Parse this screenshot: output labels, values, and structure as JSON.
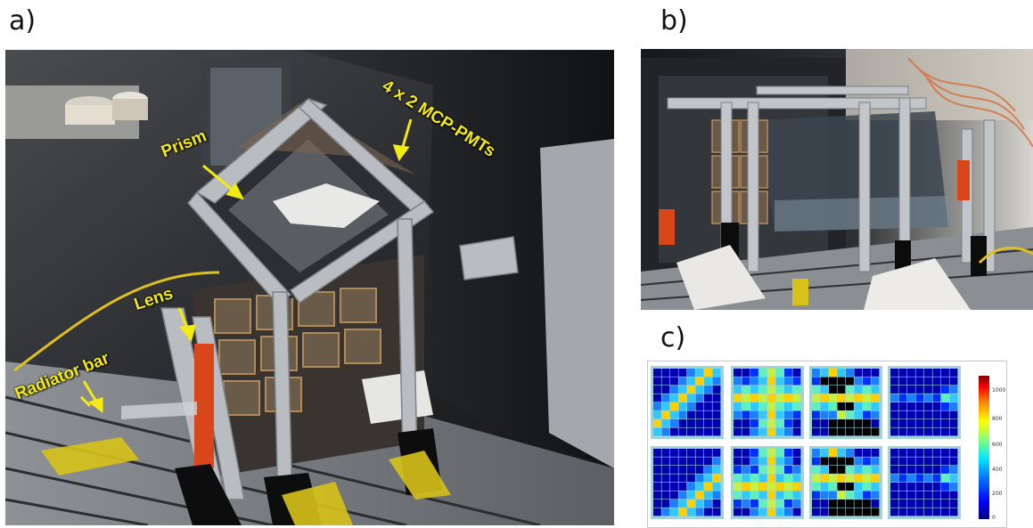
{
  "panels": {
    "a": {
      "label": "a)"
    },
    "b": {
      "label": "b)"
    },
    "c": {
      "label": "c)"
    }
  },
  "annotations": {
    "prism": "Prism",
    "mcp_pmts": "4 x 2 MCP-PMTs",
    "lens": "Lens",
    "radiator_bar": "Radiator bar"
  },
  "colorbar": {
    "ticks": [
      "1000",
      "800",
      "600",
      "400",
      "200",
      "0"
    ],
    "values": [
      1000,
      800,
      600,
      400,
      200,
      0
    ]
  },
  "colors": {
    "annotation": "#f2ea10",
    "frame": "#b9bcc0"
  }
}
